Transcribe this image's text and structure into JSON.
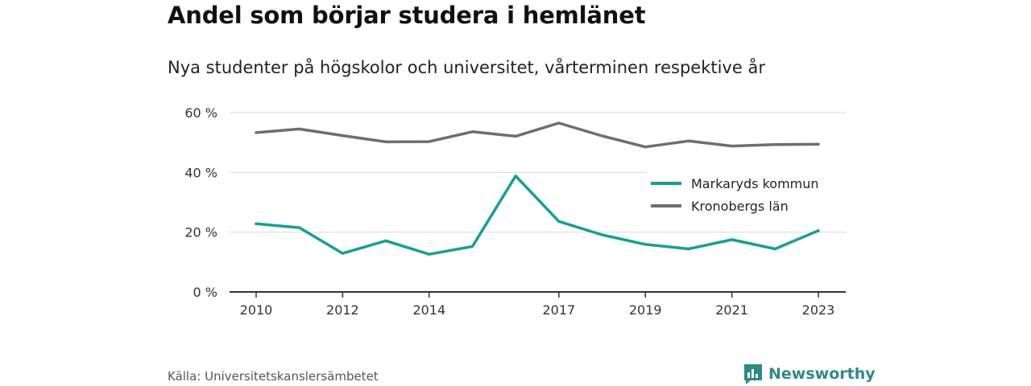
{
  "header": {
    "title": "Andel som börjar studera i hemlänet",
    "subtitle": "Nya studenter på högskolor och universitet, vårterminen respektive år"
  },
  "footer": {
    "source": "Källa: Universitetskanslersämbetet",
    "brand": "Newsworthy"
  },
  "colors": {
    "markaryd": "#14a096",
    "kronoberg": "#6e6d74",
    "grid": "#d9d9d9",
    "axis": "#333333",
    "brand": "#2c8b85"
  },
  "icons": {
    "brand_logo": "newsworthy-logo-icon"
  },
  "chart_data": {
    "type": "line",
    "title": "Andel som börjar studera i hemlänet",
    "subtitle": "Nya studenter på högskolor och universitet, vårterminen respektive år",
    "x": [
      2010,
      2011,
      2012,
      2013,
      2014,
      2015,
      2016,
      2017,
      2018,
      2019,
      2020,
      2021,
      2022,
      2023
    ],
    "x_ticks": [
      2010,
      2012,
      2014,
      2017,
      2019,
      2021,
      2023
    ],
    "x_tick_labels": [
      "2010",
      "2012",
      "2014",
      "2017",
      "2019",
      "2021",
      "2023"
    ],
    "y_ticks": [
      0,
      20,
      40,
      60
    ],
    "y_tick_labels": [
      "0 %",
      "20 %",
      "40 %",
      "60 %"
    ],
    "ylim": [
      0,
      60
    ],
    "grid": true,
    "legend_position": "right",
    "series": [
      {
        "name": "Markaryds kommun",
        "values": [
          22.8,
          21.5,
          12.9,
          17.1,
          12.6,
          15.2,
          38.8,
          23.6,
          19.1,
          15.9,
          14.4,
          17.5,
          14.4,
          20.5
        ]
      },
      {
        "name": "Kronobergs län",
        "values": [
          53.3,
          54.5,
          52.3,
          50.2,
          50.3,
          53.6,
          52.1,
          56.5,
          52.2,
          48.5,
          50.5,
          48.8,
          49.3,
          49.4
        ]
      }
    ]
  }
}
